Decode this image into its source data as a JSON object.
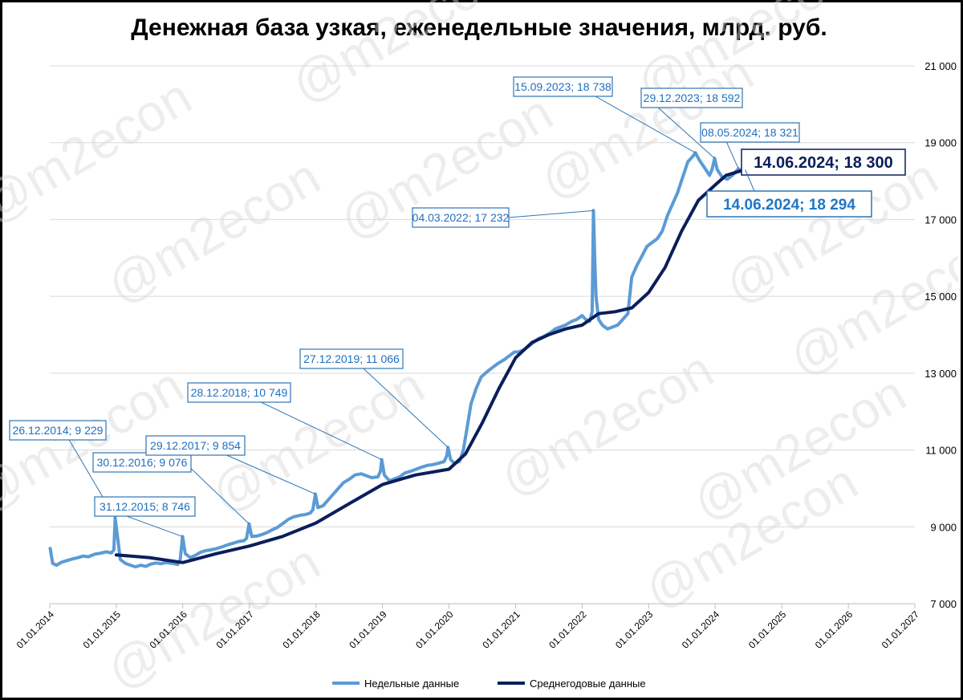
{
  "chart_data": {
    "type": "line",
    "title": "Денежная база узкая, еженедельные значения, млрд. руб.",
    "ylim": [
      7000,
      21000
    ],
    "y_ticks": [
      "7 000",
      "9 000",
      "11 000",
      "13 000",
      "15 000",
      "17 000",
      "19 000",
      "21 000"
    ],
    "y_tick_values": [
      7000,
      9000,
      11000,
      13000,
      15000,
      17000,
      19000,
      21000
    ],
    "x_ticks": [
      "01.01.2014",
      "01.01.2015",
      "01.01.2016",
      "01.01.2017",
      "01.01.2018",
      "01.01.2019",
      "01.01.2020",
      "01.01.2021",
      "01.01.2022",
      "01.01.2023",
      "01.01.2024",
      "01.01.2025",
      "01.01.2026",
      "01.01.2027"
    ],
    "xlim": [
      "2014-01-01",
      "2027-01-01"
    ],
    "y_axis_position": "right",
    "grid": "horizontal",
    "legend_position": "bottom",
    "series": [
      {
        "name": "Недельные данные",
        "color": "#5b9bd5",
        "points": [
          [
            "2014-01-03",
            8440
          ],
          [
            "2014-01-17",
            8050
          ],
          [
            "2014-02-07",
            8000
          ],
          [
            "2014-03-07",
            8080
          ],
          [
            "2014-04-04",
            8120
          ],
          [
            "2014-05-02",
            8160
          ],
          [
            "2014-06-06",
            8200
          ],
          [
            "2014-07-04",
            8240
          ],
          [
            "2014-08-01",
            8220
          ],
          [
            "2014-09-05",
            8290
          ],
          [
            "2014-10-03",
            8310
          ],
          [
            "2014-11-07",
            8350
          ],
          [
            "2014-12-05",
            8320
          ],
          [
            "2014-12-19",
            8400
          ],
          [
            "2014-12-26",
            9229
          ],
          [
            "2015-01-09",
            8700
          ],
          [
            "2015-01-23",
            8150
          ],
          [
            "2015-02-20",
            8050
          ],
          [
            "2015-03-20",
            8000
          ],
          [
            "2015-04-17",
            7960
          ],
          [
            "2015-05-15",
            8000
          ],
          [
            "2015-06-12",
            7970
          ],
          [
            "2015-07-10",
            8030
          ],
          [
            "2015-08-07",
            8060
          ],
          [
            "2015-09-04",
            8040
          ],
          [
            "2015-10-02",
            8070
          ],
          [
            "2015-11-06",
            8050
          ],
          [
            "2015-12-04",
            8020
          ],
          [
            "2015-12-18",
            8150
          ],
          [
            "2015-12-31",
            8746
          ],
          [
            "2016-01-15",
            8300
          ],
          [
            "2016-02-12",
            8200
          ],
          [
            "2016-03-11",
            8260
          ],
          [
            "2016-04-08",
            8340
          ],
          [
            "2016-05-06",
            8380
          ],
          [
            "2016-06-03",
            8400
          ],
          [
            "2016-07-01",
            8430
          ],
          [
            "2016-08-05",
            8480
          ],
          [
            "2016-09-02",
            8530
          ],
          [
            "2016-10-07",
            8580
          ],
          [
            "2016-11-04",
            8620
          ],
          [
            "2016-12-02",
            8640
          ],
          [
            "2016-12-16",
            8700
          ],
          [
            "2016-12-30",
            9076
          ],
          [
            "2017-01-13",
            8750
          ],
          [
            "2017-02-10",
            8760
          ],
          [
            "2017-03-10",
            8800
          ],
          [
            "2017-04-07",
            8850
          ],
          [
            "2017-05-05",
            8920
          ],
          [
            "2017-06-02",
            8980
          ],
          [
            "2017-07-07",
            9100
          ],
          [
            "2017-08-04",
            9200
          ],
          [
            "2017-09-01",
            9260
          ],
          [
            "2017-10-06",
            9300
          ],
          [
            "2017-11-03",
            9320
          ],
          [
            "2017-12-01",
            9360
          ],
          [
            "2017-12-15",
            9450
          ],
          [
            "2017-12-29",
            9854
          ],
          [
            "2018-01-12",
            9500
          ],
          [
            "2018-02-09",
            9550
          ],
          [
            "2018-03-09",
            9700
          ],
          [
            "2018-04-06",
            9850
          ],
          [
            "2018-05-04",
            10000
          ],
          [
            "2018-06-01",
            10150
          ],
          [
            "2018-07-06",
            10250
          ],
          [
            "2018-08-03",
            10350
          ],
          [
            "2018-09-07",
            10380
          ],
          [
            "2018-10-05",
            10330
          ],
          [
            "2018-11-02",
            10280
          ],
          [
            "2018-12-07",
            10300
          ],
          [
            "2018-12-21",
            10450
          ],
          [
            "2018-12-28",
            10749
          ],
          [
            "2019-01-11",
            10350
          ],
          [
            "2019-02-08",
            10200
          ],
          [
            "2019-03-08",
            10250
          ],
          [
            "2019-04-05",
            10300
          ],
          [
            "2019-05-03",
            10400
          ],
          [
            "2019-06-07",
            10450
          ],
          [
            "2019-07-05",
            10500
          ],
          [
            "2019-08-02",
            10550
          ],
          [
            "2019-09-06",
            10600
          ],
          [
            "2019-10-04",
            10620
          ],
          [
            "2019-11-01",
            10650
          ],
          [
            "2019-12-06",
            10700
          ],
          [
            "2019-12-20",
            10850
          ],
          [
            "2019-12-27",
            11066
          ],
          [
            "2020-01-10",
            10750
          ],
          [
            "2020-01-31",
            10650
          ],
          [
            "2020-02-28",
            10700
          ],
          [
            "2020-03-20",
            11000
          ],
          [
            "2020-04-10",
            11600
          ],
          [
            "2020-05-01",
            12200
          ],
          [
            "2020-05-29",
            12600
          ],
          [
            "2020-06-26",
            12900
          ],
          [
            "2020-07-31",
            13050
          ],
          [
            "2020-08-28",
            13150
          ],
          [
            "2020-09-25",
            13250
          ],
          [
            "2020-10-30",
            13350
          ],
          [
            "2020-11-27",
            13450
          ],
          [
            "2020-12-25",
            13550
          ],
          [
            "2021-01-15",
            13550
          ],
          [
            "2021-02-12",
            13600
          ],
          [
            "2021-03-12",
            13700
          ],
          [
            "2021-04-09",
            13800
          ],
          [
            "2021-05-07",
            13900
          ],
          [
            "2021-06-04",
            13950
          ],
          [
            "2021-07-09",
            14050
          ],
          [
            "2021-08-06",
            14150
          ],
          [
            "2021-09-03",
            14200
          ],
          [
            "2021-10-01",
            14250
          ],
          [
            "2021-11-05",
            14350
          ],
          [
            "2021-12-03",
            14400
          ],
          [
            "2021-12-31",
            14500
          ],
          [
            "2022-01-21",
            14400
          ],
          [
            "2022-02-11",
            14350
          ],
          [
            "2022-02-25",
            14600
          ],
          [
            "2022-03-04",
            17232
          ],
          [
            "2022-03-11",
            16000
          ],
          [
            "2022-03-18",
            15000
          ],
          [
            "2022-04-01",
            14400
          ],
          [
            "2022-04-22",
            14250
          ],
          [
            "2022-05-20",
            14150
          ],
          [
            "2022-06-17",
            14200
          ],
          [
            "2022-07-15",
            14250
          ],
          [
            "2022-08-12",
            14400
          ],
          [
            "2022-09-09",
            14550
          ],
          [
            "2022-09-30",
            15500
          ],
          [
            "2022-10-28",
            15800
          ],
          [
            "2022-11-25",
            16050
          ],
          [
            "2022-12-23",
            16300
          ],
          [
            "2023-01-20",
            16400
          ],
          [
            "2023-02-17",
            16500
          ],
          [
            "2023-03-17",
            16700
          ],
          [
            "2023-04-14",
            17100
          ],
          [
            "2023-05-12",
            17400
          ],
          [
            "2023-06-09",
            17700
          ],
          [
            "2023-07-07",
            18100
          ],
          [
            "2023-08-04",
            18500
          ],
          [
            "2023-09-01",
            18650
          ],
          [
            "2023-09-15",
            18738
          ],
          [
            "2023-10-06",
            18550
          ],
          [
            "2023-11-03",
            18350
          ],
          [
            "2023-12-01",
            18150
          ],
          [
            "2023-12-15",
            18300
          ],
          [
            "2023-12-29",
            18592
          ],
          [
            "2024-01-12",
            18300
          ],
          [
            "2024-02-09",
            18100
          ],
          [
            "2024-03-08",
            18050
          ],
          [
            "2024-04-05",
            18150
          ],
          [
            "2024-05-08",
            18321
          ],
          [
            "2024-05-24",
            18250
          ],
          [
            "2024-06-14",
            18294
          ]
        ]
      },
      {
        "name": "Среднегодовые данные",
        "color": "#0b1e5b",
        "points": [
          [
            "2015-01-01",
            8270
          ],
          [
            "2015-07-01",
            8200
          ],
          [
            "2016-01-01",
            8070
          ],
          [
            "2016-07-01",
            8300
          ],
          [
            "2017-01-01",
            8500
          ],
          [
            "2017-07-01",
            8750
          ],
          [
            "2018-01-01",
            9100
          ],
          [
            "2018-07-01",
            9600
          ],
          [
            "2019-01-01",
            10100
          ],
          [
            "2019-07-01",
            10350
          ],
          [
            "2020-01-01",
            10500
          ],
          [
            "2020-04-01",
            10900
          ],
          [
            "2020-07-01",
            11700
          ],
          [
            "2020-10-01",
            12600
          ],
          [
            "2021-01-01",
            13400
          ],
          [
            "2021-04-01",
            13800
          ],
          [
            "2021-07-01",
            14000
          ],
          [
            "2021-10-01",
            14150
          ],
          [
            "2022-01-01",
            14250
          ],
          [
            "2022-04-01",
            14550
          ],
          [
            "2022-07-01",
            14600
          ],
          [
            "2022-10-01",
            14700
          ],
          [
            "2023-01-01",
            15100
          ],
          [
            "2023-04-01",
            15750
          ],
          [
            "2023-07-01",
            16700
          ],
          [
            "2023-10-01",
            17500
          ],
          [
            "2024-01-01",
            17900
          ],
          [
            "2024-03-01",
            18150
          ],
          [
            "2024-06-14",
            18300
          ]
        ]
      }
    ],
    "annotations": [
      {
        "text": "26.12.2014; 9 229",
        "x": "2014-12-26",
        "y": 9229,
        "style": "normal"
      },
      {
        "text": "31.12.2015; 8 746",
        "x": "2015-12-31",
        "y": 8746,
        "style": "normal"
      },
      {
        "text": "30.12.2016; 9 076",
        "x": "2016-12-30",
        "y": 9076,
        "style": "normal"
      },
      {
        "text": "29.12.2017; 9 854",
        "x": "2017-12-29",
        "y": 9854,
        "style": "normal"
      },
      {
        "text": "28.12.2018; 10 749",
        "x": "2018-12-28",
        "y": 10749,
        "style": "normal"
      },
      {
        "text": "27.12.2019; 11 066",
        "x": "2019-12-27",
        "y": 11066,
        "style": "normal"
      },
      {
        "text": "04.03.2022; 17 232",
        "x": "2022-03-04",
        "y": 17232,
        "style": "normal"
      },
      {
        "text": "15.09.2023; 18 738",
        "x": "2023-09-15",
        "y": 18738,
        "style": "normal"
      },
      {
        "text": "29.12.2023; 18 592",
        "x": "2023-12-29",
        "y": 18592,
        "style": "normal"
      },
      {
        "text": "08.05.2024; 18 321",
        "x": "2024-05-08",
        "y": 18321,
        "style": "normal"
      },
      {
        "text": "14.06.2024; 18 300",
        "x": "2024-06-14",
        "y": 18300,
        "style": "dark"
      },
      {
        "text": "14.06.2024; 18 294",
        "x": "2024-06-14",
        "y": 18294,
        "style": "big"
      }
    ],
    "legend": [
      "Недельные данные",
      "Среднегодовые данные"
    ],
    "watermark": "@m2econ"
  }
}
